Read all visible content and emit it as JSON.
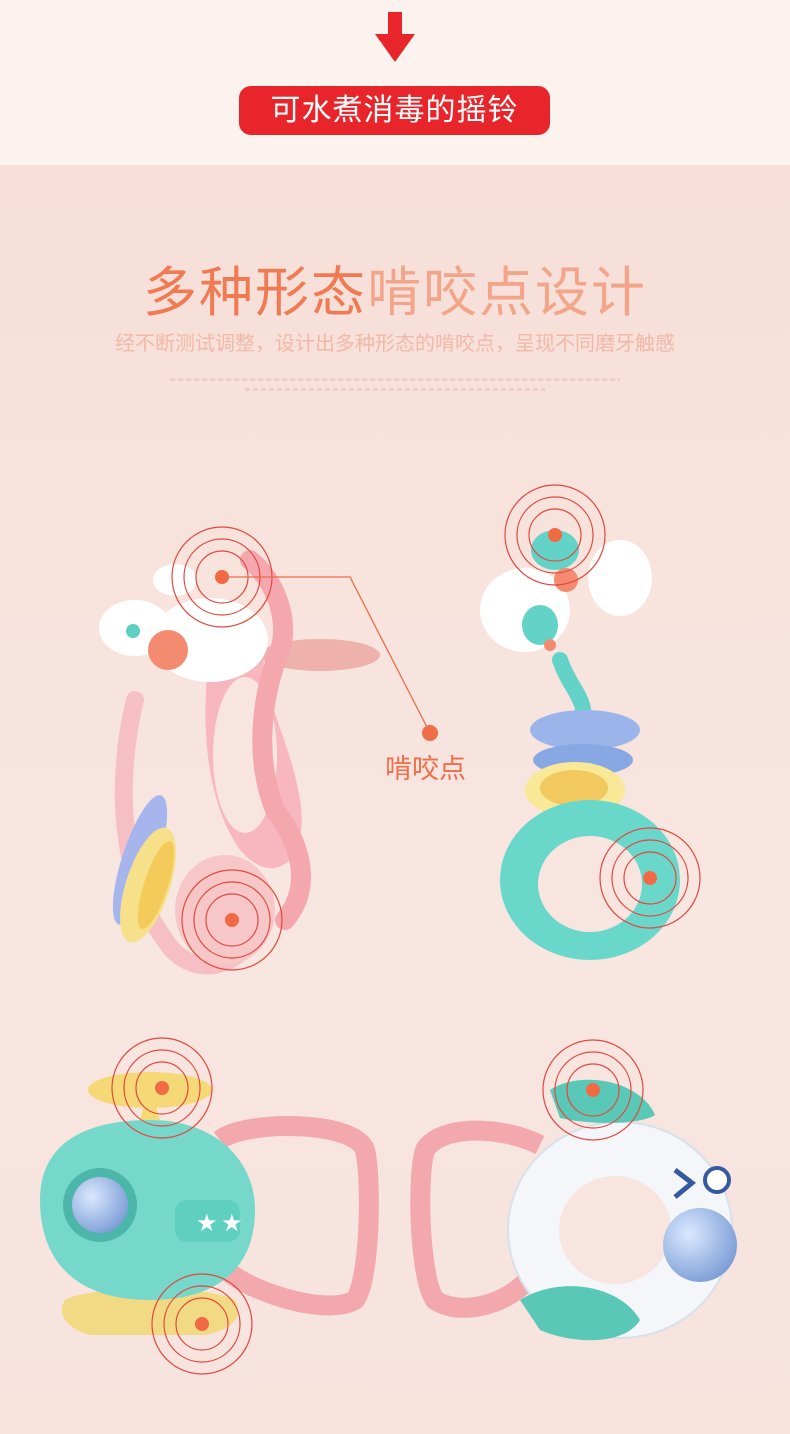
{
  "top_banner": {
    "label": "可水煮消毒的摇铃",
    "arrow_icon": "down-arrow-icon",
    "color": "#e8252b"
  },
  "section": {
    "title_part1": "多种形态",
    "title_part2": "啃咬点设计",
    "subtitle": "经不断测试调整，设计出多种形态的啃咬点，呈现不同磨牙触感"
  },
  "callout": {
    "label": "啃咬点",
    "color": "#ef6d47"
  },
  "products": [
    {
      "name": "seahorse-rattle"
    },
    {
      "name": "fish-rattle"
    },
    {
      "name": "helicopter-rattle"
    },
    {
      "name": "transparent-fish-rattle"
    }
  ]
}
